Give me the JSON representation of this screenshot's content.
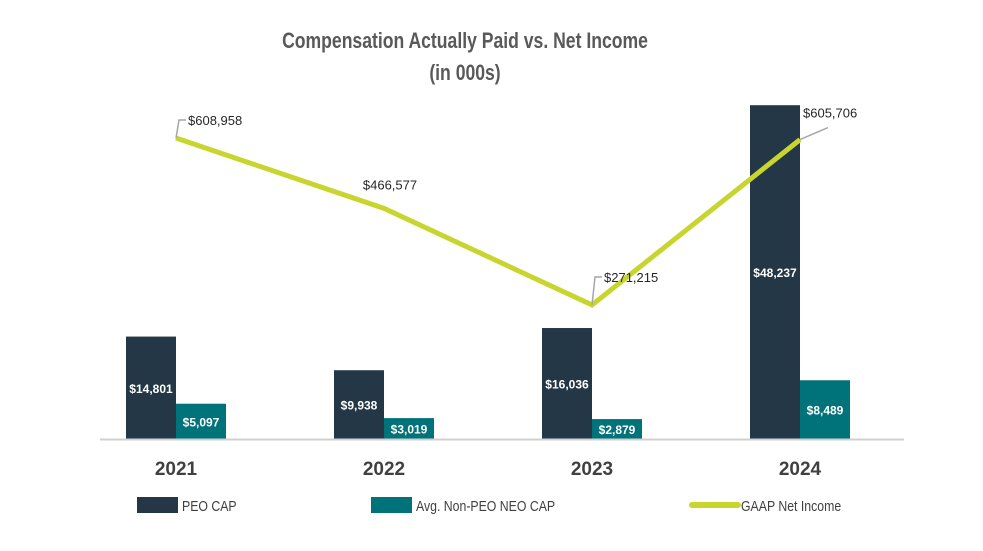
{
  "chart_data": {
    "type": "bar",
    "title": "Compensation Actually Paid vs. Net Income",
    "subtitle": "(in 000s)",
    "categories": [
      "2021",
      "2022",
      "2023",
      "2024"
    ],
    "series": [
      {
        "name": "PEO CAP",
        "kind": "bar",
        "axis": "primary",
        "color": "#243746",
        "values": [
          14801,
          9938,
          16036,
          48237
        ],
        "labels": [
          "$14,801",
          "$9,938",
          "$16,036",
          "$48,237"
        ]
      },
      {
        "name": "Avg. Non-PEO NEO CAP",
        "kind": "bar",
        "axis": "primary",
        "color": "#00727a",
        "values": [
          5097,
          3019,
          2879,
          8489
        ],
        "labels": [
          "$5,097",
          "$3,019",
          "$2,879",
          "$8,489"
        ]
      },
      {
        "name": "GAAP Net Income",
        "kind": "line",
        "axis": "secondary",
        "color": "#c9d52f",
        "values": [
          608958,
          466577,
          271215,
          605706
        ],
        "labels": [
          "$608,958",
          "$466,577",
          "$271,215",
          "$605,706"
        ]
      }
    ],
    "primary_ylim": [
      0,
      50000
    ],
    "secondary_ylim": [
      0,
      700000
    ],
    "grid": false,
    "legend": "bottom"
  }
}
